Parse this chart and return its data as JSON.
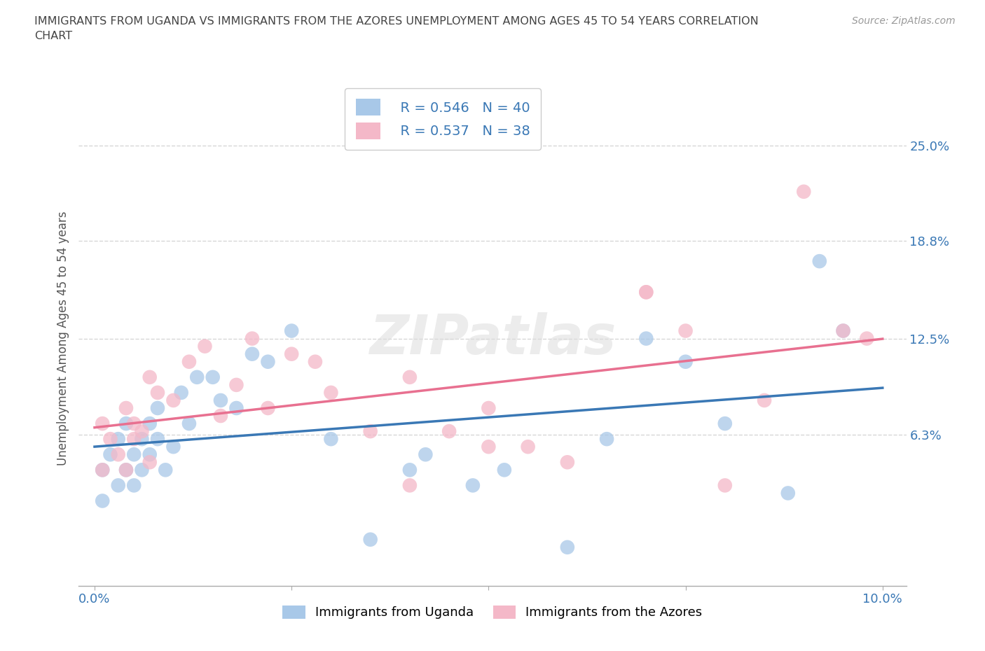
{
  "title": "IMMIGRANTS FROM UGANDA VS IMMIGRANTS FROM THE AZORES UNEMPLOYMENT AMONG AGES 45 TO 54 YEARS CORRELATION\nCHART",
  "source": "Source: ZipAtlas.com",
  "ylabel": "Unemployment Among Ages 45 to 54 years",
  "legend_label1": "Immigrants from Uganda",
  "legend_label2": "Immigrants from the Azores",
  "r1": 0.546,
  "n1": 40,
  "r2": 0.537,
  "n2": 38,
  "color_blue": "#a8c8e8",
  "color_pink": "#f4b8c8",
  "color_blue_line": "#3a78b5",
  "color_pink_line": "#e87090",
  "xlim": [
    -0.002,
    0.103
  ],
  "ylim": [
    -0.035,
    0.285
  ],
  "yticks": [
    0.063,
    0.125,
    0.188,
    0.25
  ],
  "ytick_labels": [
    "6.3%",
    "12.5%",
    "18.8%",
    "25.0%"
  ],
  "xticks": [
    0.0,
    0.025,
    0.05,
    0.075,
    0.1
  ],
  "xtick_labels": [
    "0.0%",
    "",
    "",
    "",
    "10.0%"
  ],
  "blue_x": [
    0.001,
    0.001,
    0.002,
    0.003,
    0.003,
    0.004,
    0.004,
    0.005,
    0.005,
    0.006,
    0.006,
    0.007,
    0.007,
    0.008,
    0.008,
    0.009,
    0.01,
    0.011,
    0.012,
    0.013,
    0.015,
    0.016,
    0.018,
    0.02,
    0.022,
    0.025,
    0.03,
    0.035,
    0.04,
    0.042,
    0.048,
    0.052,
    0.06,
    0.065,
    0.07,
    0.075,
    0.08,
    0.088,
    0.092,
    0.095
  ],
  "blue_y": [
    0.02,
    0.04,
    0.05,
    0.03,
    0.06,
    0.04,
    0.07,
    0.05,
    0.03,
    0.06,
    0.04,
    0.05,
    0.07,
    0.06,
    0.08,
    0.04,
    0.055,
    0.09,
    0.07,
    0.1,
    0.1,
    0.085,
    0.08,
    0.115,
    0.11,
    0.13,
    0.06,
    -0.005,
    0.04,
    0.05,
    0.03,
    0.04,
    -0.01,
    0.06,
    0.125,
    0.11,
    0.07,
    0.025,
    0.175,
    0.13
  ],
  "pink_x": [
    0.001,
    0.001,
    0.002,
    0.003,
    0.004,
    0.004,
    0.005,
    0.005,
    0.006,
    0.007,
    0.007,
    0.008,
    0.01,
    0.012,
    0.014,
    0.016,
    0.018,
    0.02,
    0.022,
    0.025,
    0.028,
    0.03,
    0.035,
    0.04,
    0.045,
    0.05,
    0.055,
    0.06,
    0.07,
    0.075,
    0.08,
    0.085,
    0.09,
    0.095,
    0.098,
    0.07,
    0.04,
    0.05
  ],
  "pink_y": [
    0.04,
    0.07,
    0.06,
    0.05,
    0.08,
    0.04,
    0.06,
    0.07,
    0.065,
    0.1,
    0.045,
    0.09,
    0.085,
    0.11,
    0.12,
    0.075,
    0.095,
    0.125,
    0.08,
    0.115,
    0.11,
    0.09,
    0.065,
    0.1,
    0.065,
    0.08,
    0.055,
    0.045,
    0.155,
    0.13,
    0.03,
    0.085,
    0.22,
    0.13,
    0.125,
    0.155,
    0.03,
    0.055
  ]
}
